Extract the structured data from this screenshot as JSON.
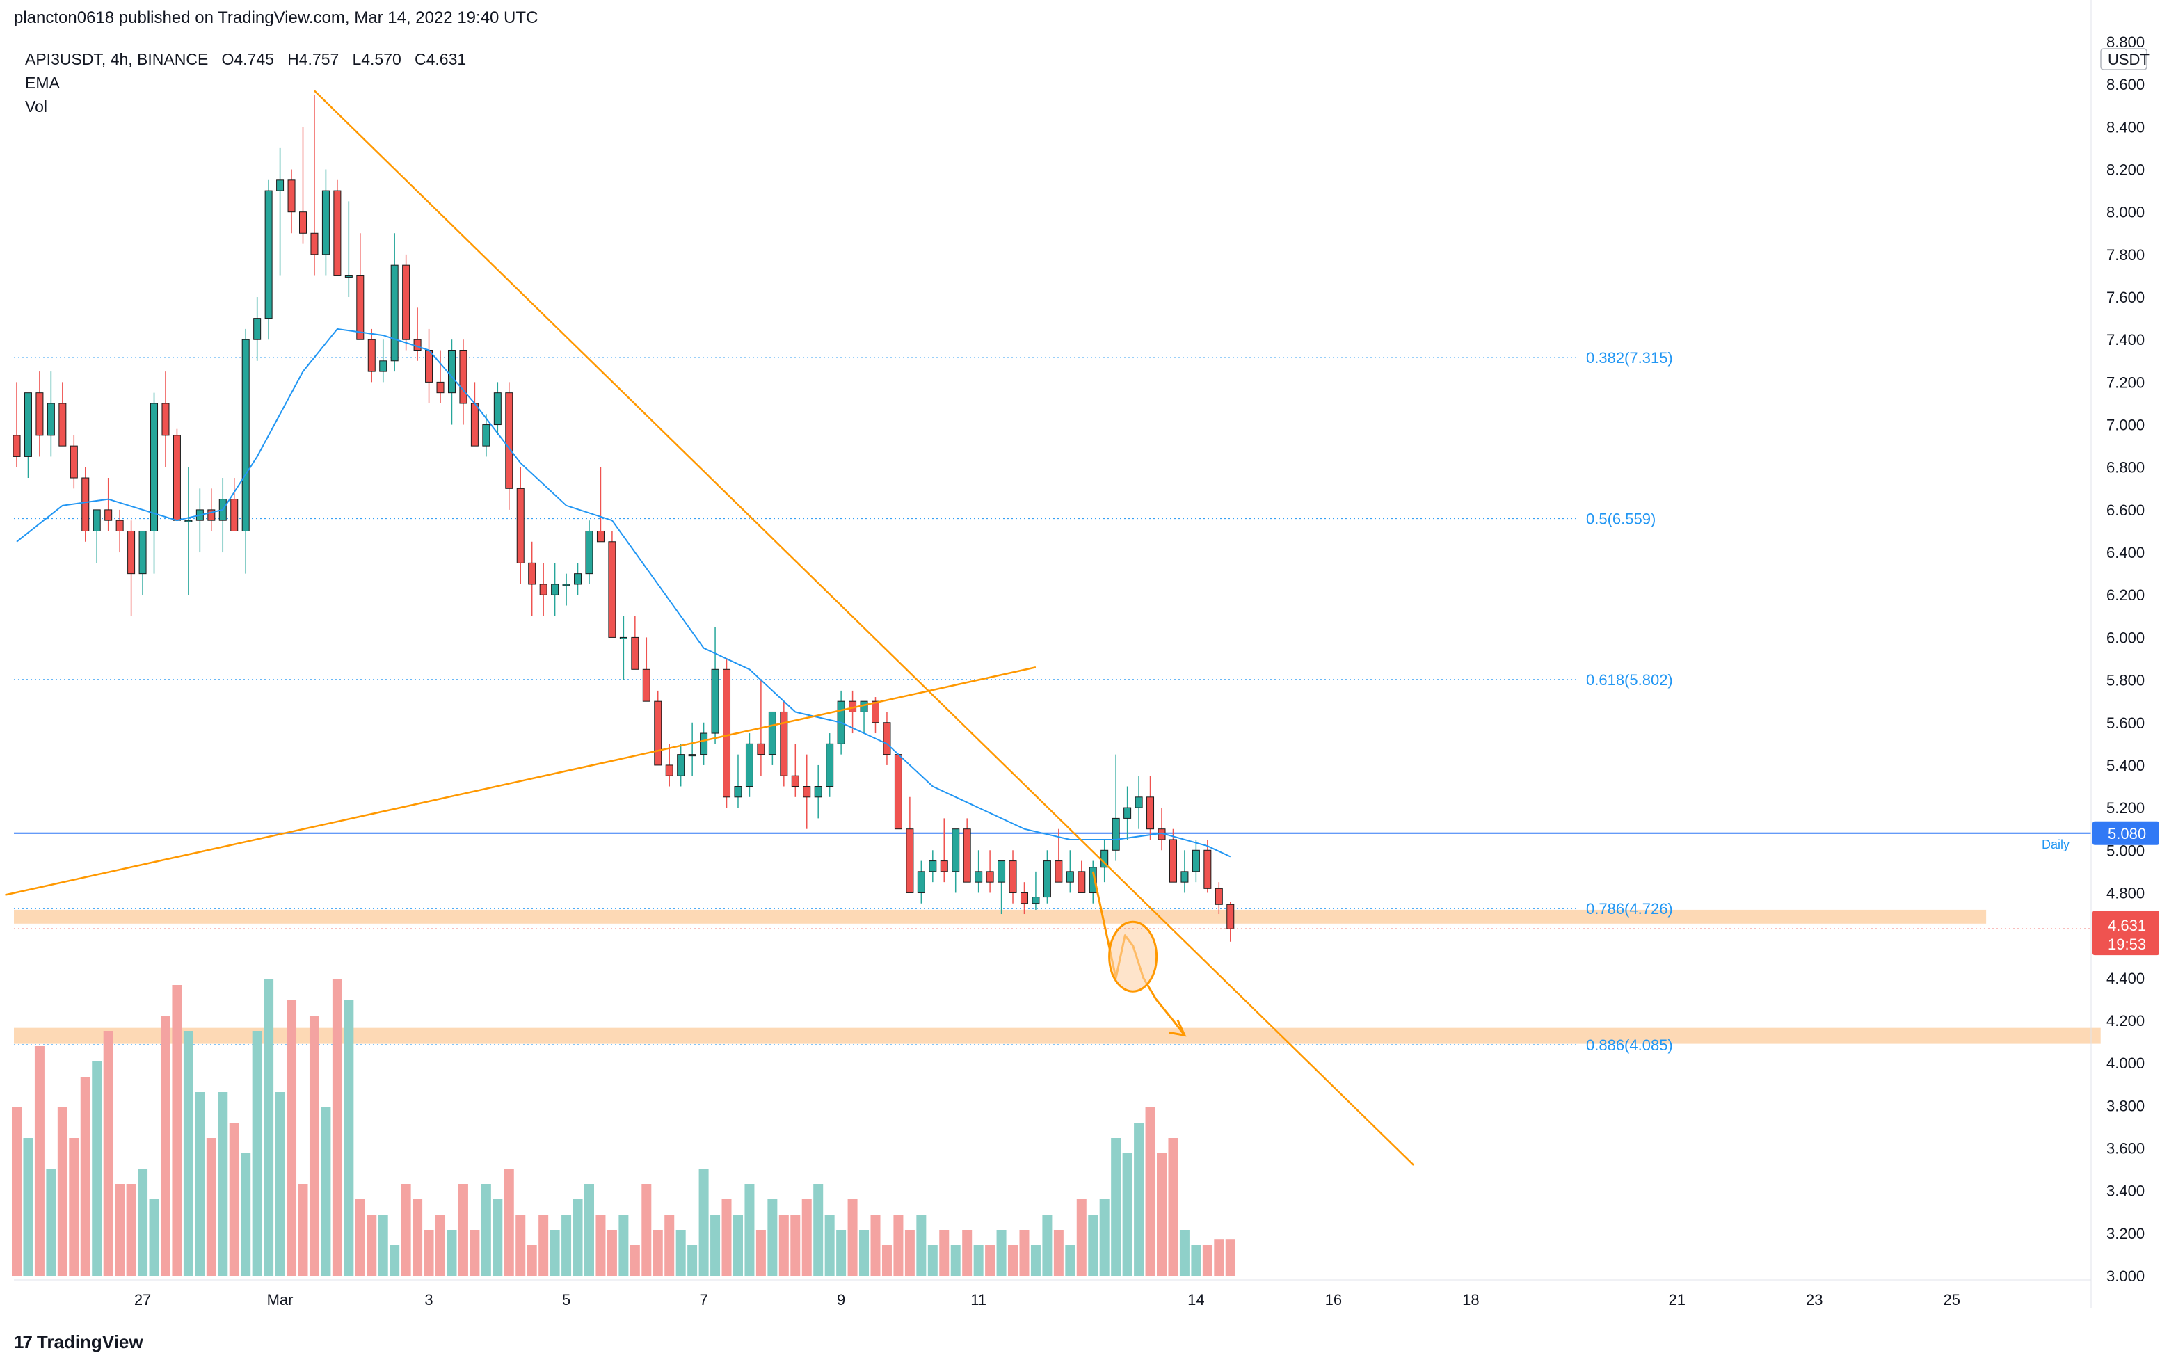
{
  "header": {
    "publisher_text": "plancton0618 published on TradingView.com, Mar 14, 2022 19:40 UTC"
  },
  "legend": {
    "symbol_line": "API3USDT, 4h, BINANCE",
    "open": "O4.745",
    "high": "H4.757",
    "low": "L4.570",
    "close": "C4.631",
    "indicator_1": "EMA",
    "indicator_2": "Vol"
  },
  "footer": {
    "brand": "TradingView"
  },
  "colors": {
    "up": "#26a69a",
    "down": "#ef5350",
    "up_vol": "#8fd0c9",
    "down_vol": "#f4a3a1",
    "ema": "#2196f3",
    "trend": "#ff9800",
    "fib": "#2196f3",
    "zone": "#fdd2a8"
  },
  "chart_data": {
    "type": "candlestick",
    "title": "API3USDT, 4h, BINANCE",
    "currency_label": "USDT",
    "ylim": [
      3.0,
      8.8
    ],
    "y_ticks": [
      "8.800",
      "8.600",
      "8.400",
      "8.200",
      "8.000",
      "7.800",
      "7.600",
      "7.400",
      "7.200",
      "7.000",
      "6.800",
      "6.600",
      "6.400",
      "6.200",
      "6.000",
      "5.800",
      "5.600",
      "5.400",
      "5.200",
      "5.000",
      "4.800",
      "4.400",
      "4.200",
      "4.000",
      "3.800",
      "3.600",
      "3.400",
      "3.200",
      "3.000"
    ],
    "x_ticks": [
      "27",
      "Mar",
      "3",
      "5",
      "7",
      "9",
      "11",
      "14",
      "16",
      "18",
      "21",
      "23",
      "25"
    ],
    "x_tick_bar_index": [
      11,
      23,
      36,
      48,
      60,
      72,
      84,
      103,
      115,
      127,
      145,
      157,
      169
    ],
    "candles": [
      [
        6.95,
        7.2,
        6.8,
        6.85
      ],
      [
        6.85,
        7.15,
        6.75,
        7.15
      ],
      [
        7.15,
        7.25,
        6.85,
        6.95
      ],
      [
        6.95,
        7.25,
        6.85,
        7.1
      ],
      [
        7.1,
        7.2,
        6.9,
        6.9
      ],
      [
        6.9,
        6.95,
        6.7,
        6.75
      ],
      [
        6.75,
        6.8,
        6.45,
        6.5
      ],
      [
        6.5,
        6.6,
        6.35,
        6.6
      ],
      [
        6.6,
        6.75,
        6.5,
        6.55
      ],
      [
        6.55,
        6.6,
        6.4,
        6.5
      ],
      [
        6.5,
        6.55,
        6.1,
        6.3
      ],
      [
        6.3,
        6.5,
        6.2,
        6.5
      ],
      [
        6.5,
        7.15,
        6.3,
        7.1
      ],
      [
        7.1,
        7.25,
        6.8,
        6.95
      ],
      [
        6.95,
        6.98,
        6.6,
        6.55
      ],
      [
        6.55,
        6.8,
        6.2,
        6.55
      ],
      [
        6.55,
        6.7,
        6.4,
        6.6
      ],
      [
        6.6,
        6.7,
        6.5,
        6.55
      ],
      [
        6.55,
        6.75,
        6.4,
        6.65
      ],
      [
        6.65,
        6.75,
        6.5,
        6.5
      ],
      [
        6.5,
        7.45,
        6.3,
        7.4
      ],
      [
        7.4,
        7.6,
        7.3,
        7.5
      ],
      [
        7.5,
        8.15,
        7.4,
        8.1
      ],
      [
        8.1,
        8.3,
        7.7,
        8.15
      ],
      [
        8.15,
        8.2,
        7.9,
        8.0
      ],
      [
        8.0,
        8.4,
        7.85,
        7.9
      ],
      [
        7.9,
        8.55,
        7.7,
        7.8
      ],
      [
        7.8,
        8.2,
        7.7,
        8.1
      ],
      [
        8.1,
        8.15,
        7.7,
        7.7
      ],
      [
        7.7,
        8.05,
        7.6,
        7.7
      ],
      [
        7.7,
        7.9,
        7.4,
        7.4
      ],
      [
        7.4,
        7.45,
        7.2,
        7.25
      ],
      [
        7.25,
        7.4,
        7.2,
        7.3
      ],
      [
        7.3,
        7.9,
        7.25,
        7.75
      ],
      [
        7.75,
        7.8,
        7.35,
        7.4
      ],
      [
        7.4,
        7.55,
        7.3,
        7.35
      ],
      [
        7.35,
        7.45,
        7.1,
        7.2
      ],
      [
        7.2,
        7.35,
        7.1,
        7.15
      ],
      [
        7.15,
        7.4,
        7.0,
        7.35
      ],
      [
        7.35,
        7.4,
        7.0,
        7.1
      ],
      [
        7.1,
        7.2,
        6.9,
        6.9
      ],
      [
        6.9,
        7.05,
        6.85,
        7.0
      ],
      [
        7.0,
        7.2,
        6.95,
        7.15
      ],
      [
        7.15,
        7.2,
        6.6,
        6.7
      ],
      [
        6.7,
        6.8,
        6.25,
        6.35
      ],
      [
        6.35,
        6.45,
        6.1,
        6.25
      ],
      [
        6.25,
        6.35,
        6.1,
        6.2
      ],
      [
        6.2,
        6.35,
        6.1,
        6.25
      ],
      [
        6.25,
        6.3,
        6.15,
        6.25
      ],
      [
        6.25,
        6.35,
        6.2,
        6.3
      ],
      [
        6.3,
        6.55,
        6.25,
        6.5
      ],
      [
        6.5,
        6.8,
        6.45,
        6.45
      ],
      [
        6.45,
        6.5,
        6.0,
        6.0
      ],
      [
        6.0,
        6.1,
        5.8,
        6.0
      ],
      [
        6.0,
        6.1,
        5.85,
        5.85
      ],
      [
        5.85,
        6.0,
        5.7,
        5.7
      ],
      [
        5.7,
        5.75,
        5.4,
        5.4
      ],
      [
        5.4,
        5.5,
        5.3,
        5.35
      ],
      [
        5.35,
        5.5,
        5.3,
        5.45
      ],
      [
        5.45,
        5.6,
        5.35,
        5.45
      ],
      [
        5.45,
        5.6,
        5.4,
        5.55
      ],
      [
        5.55,
        6.05,
        5.5,
        5.85
      ],
      [
        5.85,
        5.9,
        5.2,
        5.25
      ],
      [
        5.25,
        5.45,
        5.2,
        5.3
      ],
      [
        5.3,
        5.55,
        5.25,
        5.5
      ],
      [
        5.5,
        5.8,
        5.35,
        5.45
      ],
      [
        5.45,
        5.65,
        5.4,
        5.65
      ],
      [
        5.65,
        5.7,
        5.3,
        5.35
      ],
      [
        5.35,
        5.5,
        5.25,
        5.3
      ],
      [
        5.3,
        5.45,
        5.1,
        5.25
      ],
      [
        5.25,
        5.4,
        5.15,
        5.3
      ],
      [
        5.3,
        5.55,
        5.25,
        5.5
      ],
      [
        5.5,
        5.75,
        5.45,
        5.7
      ],
      [
        5.7,
        5.75,
        5.55,
        5.65
      ],
      [
        5.65,
        5.7,
        5.55,
        5.7
      ],
      [
        5.7,
        5.72,
        5.55,
        5.6
      ],
      [
        5.6,
        5.65,
        5.4,
        5.45
      ],
      [
        5.45,
        5.45,
        5.1,
        5.1
      ],
      [
        5.1,
        5.25,
        4.8,
        4.8
      ],
      [
        4.8,
        4.95,
        4.75,
        4.9
      ],
      [
        4.9,
        5.0,
        4.85,
        4.95
      ],
      [
        4.95,
        5.15,
        4.85,
        4.9
      ],
      [
        4.9,
        5.1,
        4.8,
        5.1
      ],
      [
        5.1,
        5.15,
        4.85,
        4.85
      ],
      [
        4.85,
        5.0,
        4.8,
        4.9
      ],
      [
        4.9,
        5.0,
        4.8,
        4.85
      ],
      [
        4.85,
        4.95,
        4.7,
        4.95
      ],
      [
        4.95,
        5.0,
        4.75,
        4.8
      ],
      [
        4.8,
        4.85,
        4.7,
        4.75
      ],
      [
        4.75,
        4.9,
        4.72,
        4.78
      ],
      [
        4.78,
        5.0,
        4.75,
        4.95
      ],
      [
        4.95,
        5.1,
        4.85,
        4.85
      ],
      [
        4.85,
        5.0,
        4.8,
        4.9
      ],
      [
        4.9,
        4.95,
        4.8,
        4.8
      ],
      [
        4.8,
        4.95,
        4.75,
        4.92
      ],
      [
        4.92,
        5.05,
        4.85,
        5.0
      ],
      [
        5.0,
        5.45,
        4.95,
        5.15
      ],
      [
        5.15,
        5.3,
        5.05,
        5.2
      ],
      [
        5.2,
        5.35,
        5.1,
        5.25
      ],
      [
        5.25,
        5.35,
        5.05,
        5.1
      ],
      [
        5.1,
        5.2,
        5.0,
        5.05
      ],
      [
        5.05,
        5.1,
        4.85,
        4.85
      ],
      [
        4.85,
        5.0,
        4.8,
        4.9
      ],
      [
        4.9,
        5.05,
        4.85,
        5.0
      ],
      [
        5.0,
        5.05,
        4.8,
        4.82
      ],
      [
        4.82,
        4.85,
        4.7,
        4.745
      ],
      [
        4.745,
        4.757,
        4.57,
        4.631
      ]
    ],
    "volume": [
      0.55,
      0.45,
      0.75,
      0.35,
      0.55,
      0.45,
      0.65,
      0.7,
      0.8,
      0.3,
      0.3,
      0.35,
      0.25,
      0.85,
      0.95,
      0.8,
      0.6,
      0.45,
      0.6,
      0.5,
      0.4,
      0.8,
      0.97,
      0.6,
      0.9,
      0.3,
      0.85,
      0.55,
      0.97,
      0.9,
      0.25,
      0.2,
      0.2,
      0.1,
      0.3,
      0.25,
      0.15,
      0.2,
      0.15,
      0.3,
      0.15,
      0.3,
      0.25,
      0.35,
      0.2,
      0.1,
      0.2,
      0.15,
      0.2,
      0.25,
      0.3,
      0.2,
      0.15,
      0.2,
      0.1,
      0.3,
      0.15,
      0.2,
      0.15,
      0.1,
      0.35,
      0.2,
      0.25,
      0.2,
      0.3,
      0.15,
      0.25,
      0.2,
      0.2,
      0.25,
      0.3,
      0.2,
      0.15,
      0.25,
      0.15,
      0.2,
      0.1,
      0.2,
      0.15,
      0.2,
      0.1,
      0.15,
      0.1,
      0.15,
      0.1,
      0.1,
      0.15,
      0.1,
      0.15,
      0.1,
      0.2,
      0.15,
      0.1,
      0.25,
      0.2,
      0.25,
      0.45,
      0.4,
      0.5,
      0.55,
      0.4,
      0.45,
      0.15,
      0.1,
      0.1,
      0.12,
      0.12
    ],
    "ema_knots": [
      [
        0,
        6.45
      ],
      [
        4,
        6.62
      ],
      [
        8,
        6.65
      ],
      [
        14,
        6.55
      ],
      [
        18,
        6.6
      ],
      [
        21,
        6.85
      ],
      [
        25,
        7.25
      ],
      [
        28,
        7.45
      ],
      [
        32,
        7.42
      ],
      [
        36,
        7.35
      ],
      [
        40,
        7.1
      ],
      [
        44,
        6.82
      ],
      [
        48,
        6.62
      ],
      [
        52,
        6.55
      ],
      [
        56,
        6.25
      ],
      [
        60,
        5.95
      ],
      [
        64,
        5.85
      ],
      [
        68,
        5.65
      ],
      [
        72,
        5.6
      ],
      [
        76,
        5.5
      ],
      [
        80,
        5.3
      ],
      [
        84,
        5.2
      ],
      [
        88,
        5.1
      ],
      [
        92,
        5.05
      ],
      [
        96,
        5.05
      ],
      [
        100,
        5.08
      ],
      [
        104,
        5.02
      ],
      [
        106,
        4.97
      ]
    ],
    "horizontal_line": {
      "label": "Daily",
      "value": 5.08,
      "value_text": "5.080"
    },
    "last_price": {
      "value": 4.631,
      "value_text": "4.631",
      "countdown": "19:53"
    },
    "fib_levels": [
      {
        "label": "0.382(7.315)",
        "value": 7.315
      },
      {
        "label": "0.5(6.559)",
        "value": 6.559
      },
      {
        "label": "0.618(5.802)",
        "value": 5.802
      },
      {
        "label": "0.786(4.726)",
        "value": 4.726
      },
      {
        "label": "0.886(4.085)",
        "value": 4.085
      }
    ],
    "support_zones": [
      {
        "from": 4.655,
        "to": 4.72,
        "until_bar": 172
      },
      {
        "from": 4.09,
        "to": 4.165,
        "until_bar": 182
      }
    ],
    "trendlines": [
      {
        "name": "descending-trendline",
        "from": [
          26,
          8.57
        ],
        "to": [
          122,
          3.52
        ]
      },
      {
        "name": "ascending-trendline",
        "from": [
          -1,
          4.79
        ],
        "to": [
          89,
          5.86
        ]
      }
    ],
    "projection": {
      "circle_center": [
        97,
        4.5
      ],
      "path": [
        [
          94,
          4.9
        ],
        [
          95,
          4.65
        ],
        [
          96,
          4.4
        ],
        [
          96.8,
          4.6
        ],
        [
          97.5,
          4.55
        ],
        [
          98.4,
          4.4
        ],
        [
          99.5,
          4.3
        ],
        [
          101,
          4.2
        ],
        [
          102,
          4.13
        ]
      ]
    }
  }
}
